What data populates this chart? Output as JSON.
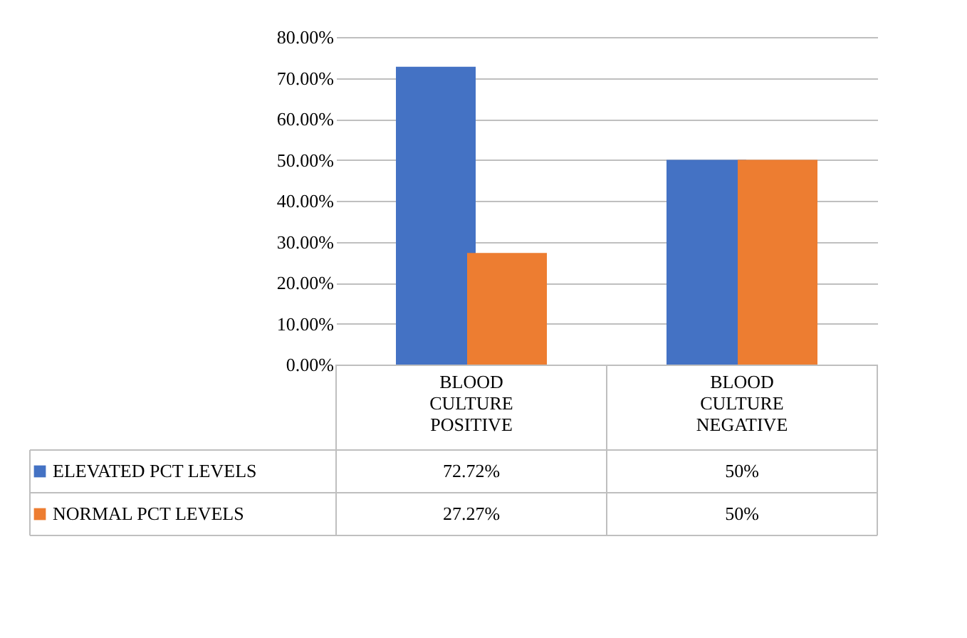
{
  "chart_data": {
    "type": "bar",
    "categories": [
      "BLOOD CULTURE POSITIVE",
      "BLOOD CULTURE NEGATIVE"
    ],
    "series": [
      {
        "name": "ELEVATED PCT LEVELS",
        "color": "#4472c4",
        "values": [
          72.72,
          50
        ],
        "value_labels": [
          "72.72%",
          "50%"
        ]
      },
      {
        "name": "NORMAL PCT LEVELS",
        "color": "#ed7d31",
        "values": [
          27.27,
          50
        ],
        "value_labels": [
          "27.27%",
          "50%"
        ]
      }
    ],
    "ylim": [
      0,
      80
    ],
    "yticks": [
      {
        "value": 0,
        "label": "0.00%"
      },
      {
        "value": 10,
        "label": "10.00%"
      },
      {
        "value": 20,
        "label": "20.00%"
      },
      {
        "value": 30,
        "label": "30.00%"
      },
      {
        "value": 40,
        "label": "40.00%"
      },
      {
        "value": 50,
        "label": "50.00%"
      },
      {
        "value": 60,
        "label": "60.00%"
      },
      {
        "value": 70,
        "label": "70.00%"
      },
      {
        "value": 80,
        "label": "80.00%"
      }
    ],
    "grid": "y",
    "legend": "bottom"
  }
}
